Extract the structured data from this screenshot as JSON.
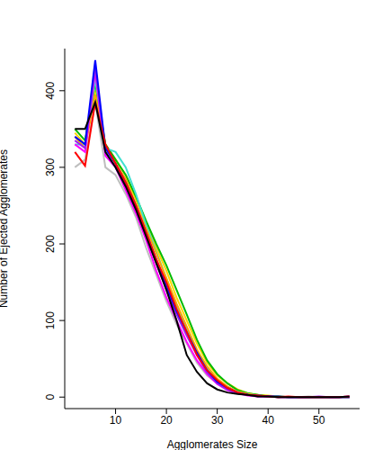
{
  "chart_data": {
    "type": "line",
    "x_label": "Agglomerates Size",
    "y_label": "Number of Ejected Agglomerates",
    "x": [
      2,
      4,
      6,
      8,
      10,
      12,
      14,
      16,
      18,
      20,
      22,
      24,
      26,
      28,
      30,
      32,
      34,
      36,
      38,
      40,
      42,
      44,
      46,
      48,
      50,
      52,
      54,
      56
    ],
    "xlim": [
      0,
      58
    ],
    "xticks": [
      10,
      20,
      30,
      40,
      50
    ],
    "ylim": [
      -15,
      455
    ],
    "yticks": [
      0,
      100,
      200,
      300,
      400
    ],
    "grid": false,
    "series": [
      {
        "color": "#ffd700",
        "values": [
          345,
          330,
          400,
          330,
          310,
          290,
          258,
          225,
          195,
          165,
          130,
          100,
          70,
          45,
          28,
          18,
          10,
          5,
          3,
          2,
          1,
          0,
          0,
          0,
          0,
          0,
          0,
          0
        ]
      },
      {
        "color": "#00bb00",
        "values": [
          350,
          335,
          410,
          330,
          310,
          290,
          262,
          230,
          200,
          172,
          140,
          108,
          75,
          48,
          30,
          18,
          9,
          5,
          3,
          1,
          1,
          0,
          0,
          0,
          0,
          0,
          0,
          0
        ]
      },
      {
        "color": "#40e0d0",
        "values": [
          330,
          330,
          415,
          325,
          320,
          300,
          265,
          225,
          190,
          155,
          120,
          88,
          60,
          38,
          22,
          13,
          7,
          4,
          2,
          1,
          0,
          0,
          0,
          0,
          0,
          0,
          0,
          0
        ]
      },
      {
        "color": "#ffa500",
        "values": [
          340,
          325,
          395,
          325,
          305,
          285,
          252,
          220,
          188,
          155,
          122,
          92,
          62,
          40,
          24,
          14,
          7,
          4,
          2,
          1,
          0,
          0,
          0,
          0,
          0,
          0,
          0,
          0
        ]
      },
      {
        "color": "#bebebe",
        "values": [
          300,
          310,
          385,
          300,
          290,
          265,
          235,
          195,
          160,
          125,
          95,
          70,
          45,
          28,
          18,
          10,
          5,
          3,
          1,
          1,
          0,
          0,
          0,
          1,
          0,
          0,
          0,
          0
        ]
      },
      {
        "color": "#ff00ff",
        "values": [
          330,
          320,
          425,
          315,
          300,
          270,
          240,
          205,
          165,
          130,
          100,
          72,
          48,
          30,
          17,
          9,
          5,
          2,
          1,
          1,
          0,
          0,
          0,
          0,
          0,
          0,
          0,
          1
        ]
      },
      {
        "color": "#a020f0",
        "values": [
          335,
          325,
          430,
          320,
          300,
          275,
          245,
          210,
          175,
          140,
          108,
          80,
          55,
          32,
          18,
          10,
          5,
          3,
          1,
          1,
          0,
          0,
          0,
          0,
          1,
          0,
          0,
          0
        ]
      },
      {
        "color": "#0000ff",
        "values": [
          340,
          330,
          440,
          325,
          305,
          280,
          250,
          215,
          180,
          145,
          112,
          85,
          58,
          35,
          20,
          12,
          6,
          3,
          2,
          1,
          1,
          0,
          0,
          0,
          0,
          0,
          0,
          0
        ]
      },
      {
        "color": "#ff0000",
        "values": [
          320,
          302,
          385,
          330,
          305,
          280,
          250,
          215,
          180,
          150,
          115,
          85,
          55,
          35,
          22,
          12,
          6,
          3,
          2,
          1,
          0,
          1,
          0,
          0,
          0,
          0,
          0,
          1
        ]
      },
      {
        "color": "#000000",
        "values": [
          350,
          350,
          385,
          320,
          300,
          275,
          245,
          210,
          175,
          140,
          100,
          55,
          33,
          18,
          10,
          6,
          4,
          3,
          1,
          1,
          0,
          0,
          0,
          0,
          0,
          0,
          0,
          1
        ]
      }
    ]
  }
}
